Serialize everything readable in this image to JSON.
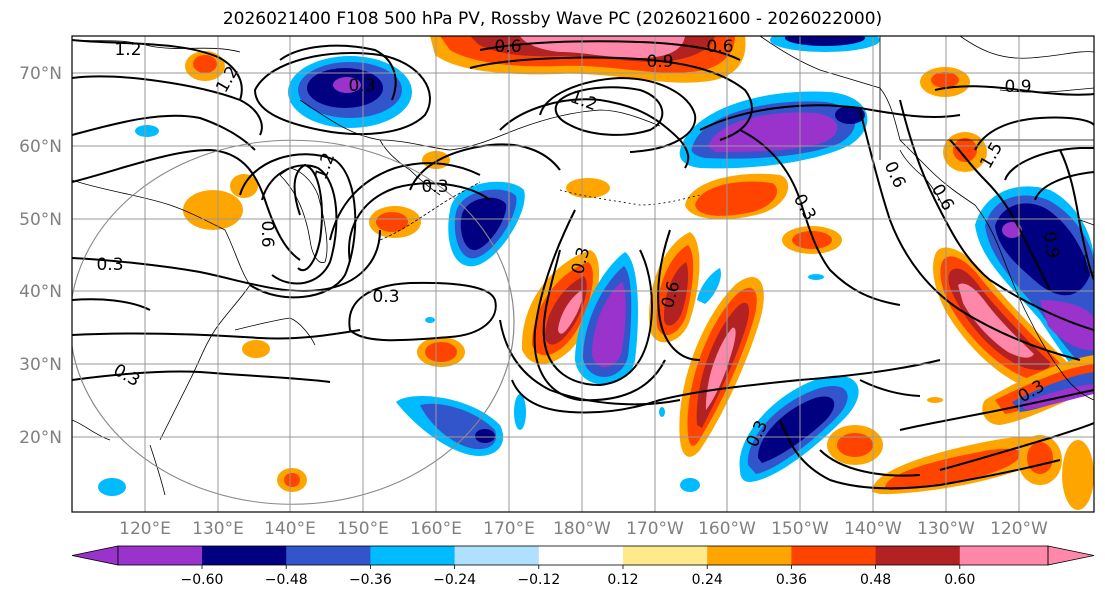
{
  "title": "2026021400 F108 500 hPa PV, Rossby Wave PC (2026021600 - 2026022000)",
  "map": {
    "lat_labels": [
      "70°N",
      "60°N",
      "50°N",
      "40°N",
      "30°N",
      "20°N"
    ],
    "lon_labels": [
      "120°E",
      "130°E",
      "140°E",
      "150°E",
      "160°E",
      "170°E",
      "180°W",
      "170°W",
      "160°W",
      "150°W",
      "140°W",
      "130°W",
      "120°W"
    ],
    "contour_labels": [
      "1.2",
      "1.2",
      "0.3",
      "0.6",
      "0.9",
      "0.6",
      "0.9",
      "1.2",
      "1.2",
      "0.3",
      "0.6",
      "0.3",
      "0.3",
      "0.3",
      "0.6",
      "0.9",
      "0.3",
      "0.3",
      "0.6",
      "1.5",
      "0.6",
      "0.3",
      "0.3"
    ],
    "colors": {
      "strong_negative": "#9933cc",
      "negative_dark": "#000080",
      "negative_mid": "#3355cc",
      "negative_light": "#00bbff",
      "negative_pale": "#b0e0ff",
      "positive_pale": "#ffe98a",
      "positive_light": "#ffa500",
      "positive_mid": "#ff4400",
      "positive_dark": "#b22222",
      "strong_positive": "#ff88aa"
    }
  },
  "colorbar": {
    "tick_labels": [
      "−0.60",
      "−0.48",
      "−0.36",
      "−0.24",
      "−0.12",
      "0.12",
      "0.24",
      "0.36",
      "0.48",
      "0.60"
    ],
    "bins": [
      "#9933cc",
      "#000080",
      "#3355cc",
      "#00bbff",
      "#b0e0ff",
      "#ffffff",
      "#ffe98a",
      "#ffa500",
      "#ff4400",
      "#b22222",
      "#ff88aa"
    ]
  }
}
